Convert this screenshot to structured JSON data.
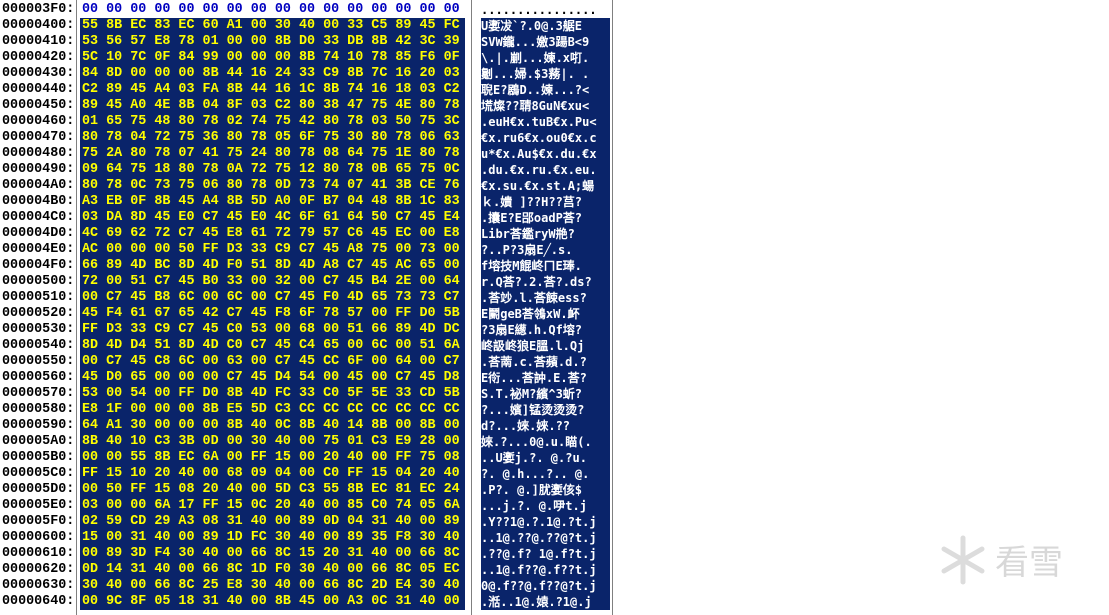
{
  "rows": [
    {
      "address": "000003F0:",
      "hex": "00 00 00 00 00 00 00 00 00 00 00 00 00 00 00 00",
      "ascii": "................"
    },
    {
      "address": "00000400:",
      "hex": "55 8B EC 83 EC 60 A1 00 30 40 00 33 C5 89 45 FC",
      "ascii": "U嬱冹`?.0@.3艍E"
    },
    {
      "address": "00000410:",
      "hex": "53 56 57 E8 78 01 00 00 8B D0 33 DB 8B 42 3C 39",
      "ascii": "SVW鑨...嬓3踼B<9"
    },
    {
      "address": "00000420:",
      "hex": "5C 10 7C 0F 84 99 00 00 00 8B 74 10 78 85 F6 0F",
      "ascii": "\\.|.剻...媡.x咑."
    },
    {
      "address": "00000430:",
      "hex": "84 8D 00 00 00 8B 44 16 24 33 C9 8B 7C 16 20 03",
      "ascii": "劖...婦.$3蓩|. ."
    },
    {
      "address": "00000440:",
      "hex": "C2 89 45 A4 03 FA 8B 44 16 1C 8B 74 16 18 03 C2",
      "ascii": "聣E?鶋D..媡...?<"
    },
    {
      "address": "00000450:",
      "hex": "89 45 A0 4E 8B 04 8F 03 C2 80 38 47 75 4E 80 78",
      "ascii": "塃燦??聙8GuN€xu<"
    },
    {
      "address": "00000460:",
      "hex": "01 65 75 48 80 78 02 74 75 42 80 78 03 50 75 3C",
      "ascii": ".euH€x.tuB€x.Pu<"
    },
    {
      "address": "00000470:",
      "hex": "80 78 04 72 75 36 80 78 05 6F 75 30 80 78 06 63",
      "ascii": "€x.ru6€x.ou0€x.c"
    },
    {
      "address": "00000480:",
      "hex": "75 2A 80 78 07 41 75 24 80 78 08 64 75 1E 80 78",
      "ascii": "u*€x.Au$€x.du.€x"
    },
    {
      "address": "00000490:",
      "hex": "09 64 75 18 80 78 0A 72 75 12 80 78 0B 65 75 0C",
      "ascii": ".du.€x.ru.€x.eu."
    },
    {
      "address": "000004A0:",
      "hex": "80 78 0C 73 75 06 80 78 0D 73 74 07 41 3B CE 76",
      "ascii": "€x.su.€x.st.A;蝪"
    },
    {
      "address": "000004B0:",
      "hex": "A3 EB 0F 8B 45 A4 8B 5D A0 0F B7 04 48 8B 1C 83",
      "ascii": "ｋ.嬇 ]??H??莒?"
    },
    {
      "address": "000004C0:",
      "hex": "03 DA 8D 45 E0 C7 45 E0 4C 6F 61 64 50 C7 45 E4",
      "ascii": ".攮E?E郘oadP荅?"
    },
    {
      "address": "000004D0:",
      "hex": "4C 69 62 72 C7 45 E8 61 72 79 57 C6 45 EC 00 E8",
      "ascii": "Libr荅鑑ryW艵?"
    },
    {
      "address": "000004E0:",
      "hex": "AC 00 00 00 50 FF D3 33 C9 C7 45 A8 75 00 73 00",
      "ascii": "?..P?3扇E╱.s."
    },
    {
      "address": "000004F0:",
      "hex": "66 89 4D BC 8D 4D F0 51 8D 4D A8 C7 45 AC 65 00",
      "ascii": "f塎技M餛峂ㄇE琫."
    },
    {
      "address": "00000500:",
      "hex": "72 00 51 C7 45 B0 33 00 32 00 C7 45 B4 2E 00 64",
      "ascii": "r.Q荅?.2.荅?.ds?"
    },
    {
      "address": "00000510:",
      "hex": "00 C7 45 B8 6C 00 6C 00 C7 45 F0 4D 65 73 73 C7",
      "ascii": ".荅竗.l.荅餗ess?"
    },
    {
      "address": "00000520:",
      "hex": "45 F4 61 67 65 42 C7 45 F8 6F 78 57 00 FF D0 5B",
      "ascii": "E鬭geB荅鴒xW.衃"
    },
    {
      "address": "00000530:",
      "hex": "FF D3 33 C9 C7 45 C0 53 00 68 00 51 66 89 4D DC",
      "ascii": "?3扇E繱.h.Qf塎?"
    },
    {
      "address": "00000540:",
      "hex": "8D 4D D4 51 8D 4D C0 C7 45 C4 65 00 6C 00 51 6A",
      "ascii": "峂訯峂狼E膃.l.Qj"
    },
    {
      "address": "00000550:",
      "hex": "00 C7 45 C8 6C 00 63 00 C7 45 CC 6F 00 64 00 C7",
      "ascii": ".荅萳.c.荅蘋.d.?"
    },
    {
      "address": "00000560:",
      "hex": "45 D0 65 00 00 00 C7 45 D4 54 00 45 00 C7 45 D8",
      "ascii": "E衑...荅訲.E.荅?"
    },
    {
      "address": "00000570:",
      "hex": "53 00 54 00 FF D0 8B 4D FC 33 C0 5F 5E 33 CD 5B",
      "ascii": "S.T.袐M?繽^3蚚?"
    },
    {
      "address": "00000580:",
      "hex": "E8 1F 00 00 00 8B E5 5D C3 CC CC CC CC CC CC CC",
      "ascii": "?...嬪]锰烫烫烫?"
    },
    {
      "address": "00000590:",
      "hex": "64 A1 30 00 00 00 8B 40 0C 8B 40 14 8B 00 8B 00",
      "ascii": "d?...婡.婡.??"
    },
    {
      "address": "000005A0:",
      "hex": "8B 40 10 C3 3B 0D 00 30 40 00 75 01 C3 E9 28 00",
      "ascii": "婡.?...0@.u.瞄(."
    },
    {
      "address": "000005B0:",
      "hex": "00 00 55 8B EC 6A 00 FF 15 00 20 40 00 FF 75 08",
      "ascii": "..U嬱j.?. @.?u."
    },
    {
      "address": "000005C0:",
      "hex": "FF 15 10 20 40 00 68 09 04 00 C0 FF 15 04 20 40",
      "ascii": "?. @.h...?.. @."
    },
    {
      "address": "000005D0:",
      "hex": "00 50 FF 15 08 20 40 00 5D C3 55 8B EC 81 EC 24",
      "ascii": ".P?. @.]肬嬱侅$"
    },
    {
      "address": "000005E0:",
      "hex": "03 00 00 6A 17 FF 15 0C 20 40 00 85 C0 74 05 6A",
      "ascii": "...j.?. @.吚t.j"
    },
    {
      "address": "000005F0:",
      "hex": "02 59 CD 29 A3 08 31 40 00 89 0D 04 31 40 00 89",
      "ascii": ".Y??1@.?.1@.?t.j"
    },
    {
      "address": "00000600:",
      "hex": "15 00 31 40 00 89 1D FC 30 40 00 89 35 F8 30 40",
      "ascii": "..1@.??@.??@?t.j"
    },
    {
      "address": "00000610:",
      "hex": "00 89 3D F4 30 40 00 66 8C 15 20 31 40 00 66 8C",
      "ascii": ".??@.f? 1@.f?t.j"
    },
    {
      "address": "00000620:",
      "hex": "0D 14 31 40 00 66 8C 1D F0 30 40 00 66 8C 05 EC",
      "ascii": "..1@.f??@.f??t.j"
    },
    {
      "address": "00000630:",
      "hex": "30 40 00 66 8C 25 E8 30 40 00 66 8C 2D E4 30 40",
      "ascii": "0@.f??@.f??@?t.j"
    },
    {
      "address": "00000640:",
      "hex": "00 9C 8F 05 18 31 40 00 8B 45 00 A3 0C 31 40 00",
      "ascii": ".湉..1@.媴.?1@.j"
    }
  ],
  "watermark": "看雪"
}
